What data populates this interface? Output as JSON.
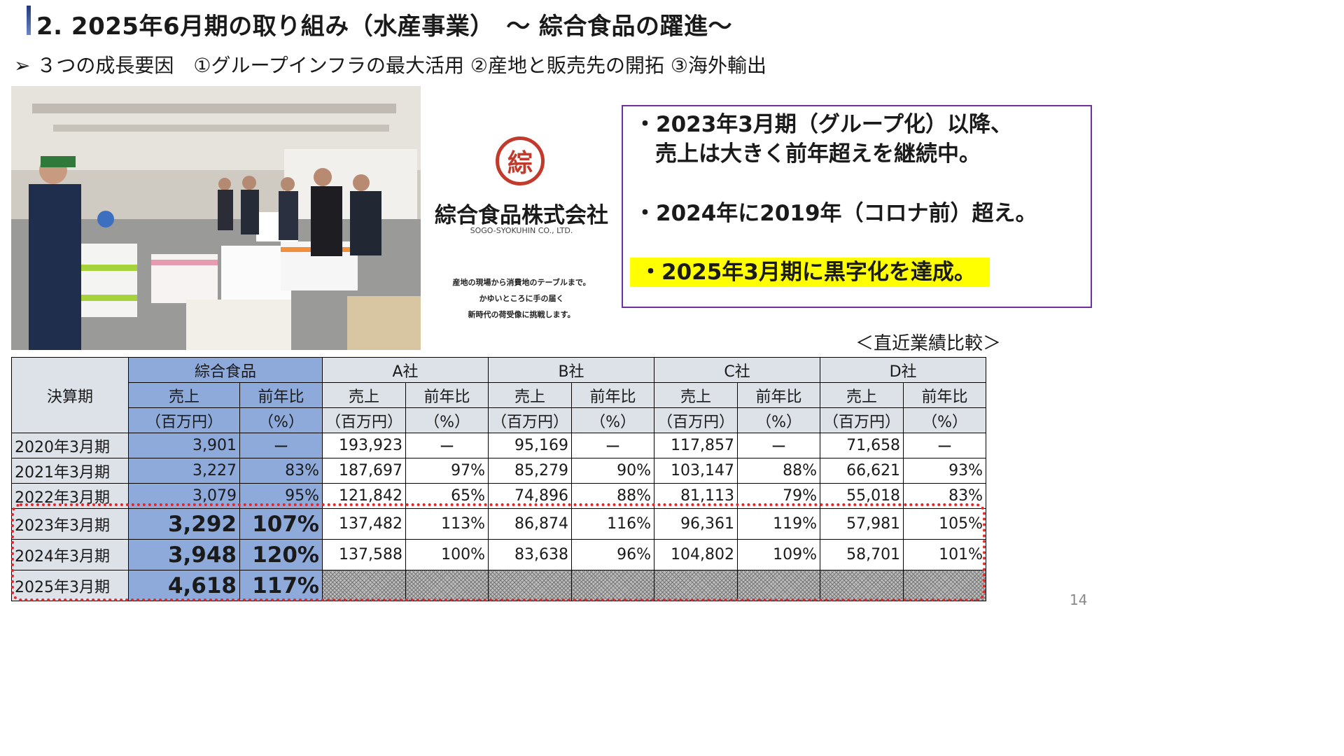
{
  "slide": {
    "title": "2. 2025年6月期の取り組み（水産事業）　～ 綜合食品の躍進～",
    "subtitle": "➢ ３つの成長要因　①グループインフラの最大活用 ②産地と販売先の開拓 ③海外輸出",
    "page_number": "14"
  },
  "logo": {
    "mark": "綜",
    "company_name": "綜合食品株式会社",
    "english_name": "SOGO-SYOKUHIN CO., LTD.",
    "tagline": [
      "産地の現場から消費地のテーブルまで。",
      "かゆいところに手の届く",
      "新時代の荷受像に挑戦します。"
    ]
  },
  "notes": [
    "・2023年3月期（グループ化）以降、",
    "売上は大きく前年超えを継続中。",
    "・2024年に2019年（コロナ前）超え。",
    "・2025年3月期に黒字化を達成。"
  ],
  "table": {
    "caption": "＜直近業績比較＞",
    "period_header": "決算期",
    "companies": [
      "綜合食品",
      "A社",
      "B社",
      "C社",
      "D社"
    ],
    "sales_label": "売上",
    "sales_unit": "（百万円）",
    "yoy_label": "前年比",
    "yoy_unit": "（%）",
    "rows": [
      {
        "period": "2020年3月期",
        "cells": [
          "3,901",
          "ー",
          "193,923",
          "ー",
          "95,169",
          "ー",
          "117,857",
          "ー",
          "71,658",
          "ー"
        ]
      },
      {
        "period": "2021年3月期",
        "cells": [
          "3,227",
          "83%",
          "187,697",
          "97%",
          "85,279",
          "90%",
          "103,147",
          "88%",
          "66,621",
          "93%"
        ]
      },
      {
        "period": "2022年3月期",
        "cells": [
          "3,079",
          "95%",
          "121,842",
          "65%",
          "74,896",
          "88%",
          "81,113",
          "79%",
          "55,018",
          "83%"
        ]
      },
      {
        "period": "2023年3月期",
        "cells": [
          "3,292",
          "107%",
          "137,482",
          "113%",
          "86,874",
          "116%",
          "96,361",
          "119%",
          "57,981",
          "105%"
        ]
      },
      {
        "period": "2024年3月期",
        "cells": [
          "3,948",
          "120%",
          "137,588",
          "100%",
          "83,638",
          "96%",
          "104,802",
          "109%",
          "58,701",
          "101%"
        ]
      },
      {
        "period": "2025年3月期",
        "cells": [
          "4,618",
          "117%",
          "",
          "",
          "",
          "",
          "",
          "",
          "",
          ""
        ]
      }
    ]
  }
}
